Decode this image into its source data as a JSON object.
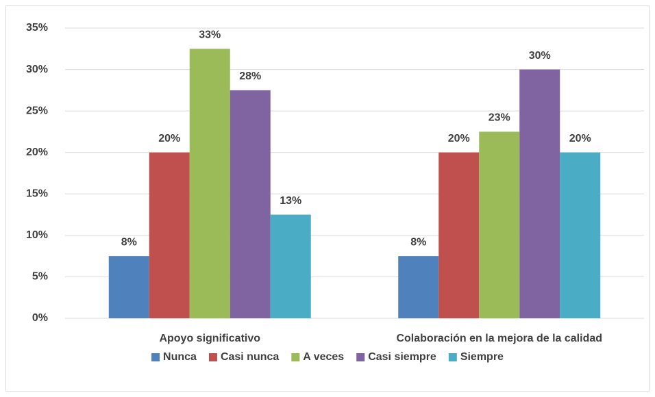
{
  "chart_data": {
    "type": "bar",
    "categories": [
      "Apoyo significativo",
      "Colaboración en la mejora de la calidad"
    ],
    "series": [
      {
        "name": "Nunca",
        "color": "#4f81bd",
        "values": [
          7.5,
          7.5
        ],
        "value_labels": [
          "8%",
          "8%"
        ]
      },
      {
        "name": "Casi nunca",
        "color": "#c0504d",
        "values": [
          20,
          20
        ],
        "value_labels": [
          "20%",
          "20%"
        ]
      },
      {
        "name": "A veces",
        "color": "#9bbb59",
        "values": [
          32.5,
          22.5
        ],
        "value_labels": [
          "33%",
          "23%"
        ]
      },
      {
        "name": "Casi siempre",
        "color": "#8064a2",
        "values": [
          27.5,
          30
        ],
        "value_labels": [
          "28%",
          "30%"
        ]
      },
      {
        "name": "Siempre",
        "color": "#4bacc6",
        "values": [
          12.5,
          20
        ],
        "value_labels": [
          "13%",
          "20%"
        ]
      }
    ],
    "ylim": [
      0,
      35
    ],
    "yticks": [
      {
        "value": 0,
        "label": "0%"
      },
      {
        "value": 5,
        "label": "5%"
      },
      {
        "value": 10,
        "label": "10%"
      },
      {
        "value": 15,
        "label": "15%"
      },
      {
        "value": 20,
        "label": "20%"
      },
      {
        "value": 25,
        "label": "25%"
      },
      {
        "value": 30,
        "label": "30%"
      },
      {
        "value": 35,
        "label": "35%"
      }
    ],
    "grid": true,
    "legend": "bottom"
  }
}
